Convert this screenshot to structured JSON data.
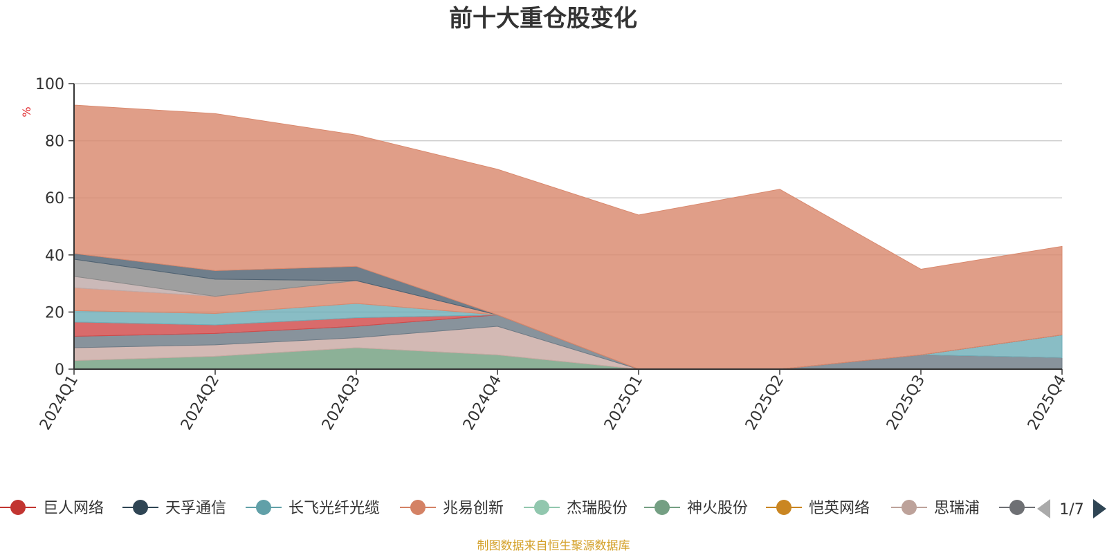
{
  "chart_data": {
    "type": "area",
    "title": "前十大重仓股变化",
    "ylabel": "%",
    "ylim": [
      0,
      100
    ],
    "yticks": [
      0,
      20,
      40,
      60,
      80,
      100
    ],
    "grid": true,
    "legend_position": "bottom",
    "categories": [
      "2024Q1",
      "2024Q2",
      "2024Q3",
      "2024Q4",
      "2025Q1",
      "2025Q2",
      "2025Q3",
      "2025Q4"
    ],
    "series": [
      {
        "name": "神火股份",
        "color": "#73a080",
        "values": [
          3,
          4.5,
          7.5,
          5,
          0,
          0,
          0,
          0
        ]
      },
      {
        "name": "思瑞浦",
        "color": "#c9aaa4",
        "values": [
          4.5,
          4,
          3.5,
          10,
          0,
          0,
          0,
          0
        ]
      },
      {
        "name": "",
        "color": "#6e7b86",
        "values": [
          4,
          4,
          4,
          4,
          0,
          0,
          5,
          4
        ]
      },
      {
        "name": "巨人网络",
        "color": "#d14a4a",
        "values": [
          5,
          3,
          3,
          0,
          0,
          0,
          0,
          0
        ]
      },
      {
        "name": "长飞光纤光缆",
        "color": "#6faeb8",
        "values": [
          4,
          4,
          5,
          0,
          0,
          0,
          0,
          8
        ]
      },
      {
        "name": "兆易创新",
        "color": "#d9896e",
        "values": [
          8,
          6,
          8,
          0,
          0,
          0,
          0,
          0
        ]
      },
      {
        "name": "",
        "color": "#c0aaa8",
        "values": [
          4,
          0,
          0,
          0,
          0,
          0,
          0,
          0
        ]
      },
      {
        "name": "",
        "color": "#8a8a8a",
        "values": [
          6,
          6,
          0,
          0,
          0,
          0,
          0,
          0
        ]
      },
      {
        "name": "天孚通信",
        "color": "#4f6272",
        "values": [
          2,
          3,
          5,
          0,
          0,
          0,
          0,
          0
        ]
      },
      {
        "name": "",
        "color": "#d9896e",
        "values": [
          52,
          55,
          46,
          51,
          54,
          63,
          30,
          31
        ]
      }
    ]
  },
  "legend": {
    "items": [
      {
        "name": "巨人网络",
        "color": "#c23531"
      },
      {
        "name": "天孚通信",
        "color": "#2f4554"
      },
      {
        "name": "长飞光纤光缆",
        "color": "#61a0a8"
      },
      {
        "name": "兆易创新",
        "color": "#d48265"
      },
      {
        "name": "杰瑞股份",
        "color": "#91c7ae"
      },
      {
        "name": "神火股份",
        "color": "#749f83"
      },
      {
        "name": "恺英网络",
        "color": "#ca8622"
      },
      {
        "name": "思瑞浦",
        "color": "#bda29a"
      },
      {
        "name": "",
        "color": "#6e7074"
      }
    ],
    "page_indicator": "1/7"
  },
  "source_note": "制图数据来自恒生聚源数据库"
}
